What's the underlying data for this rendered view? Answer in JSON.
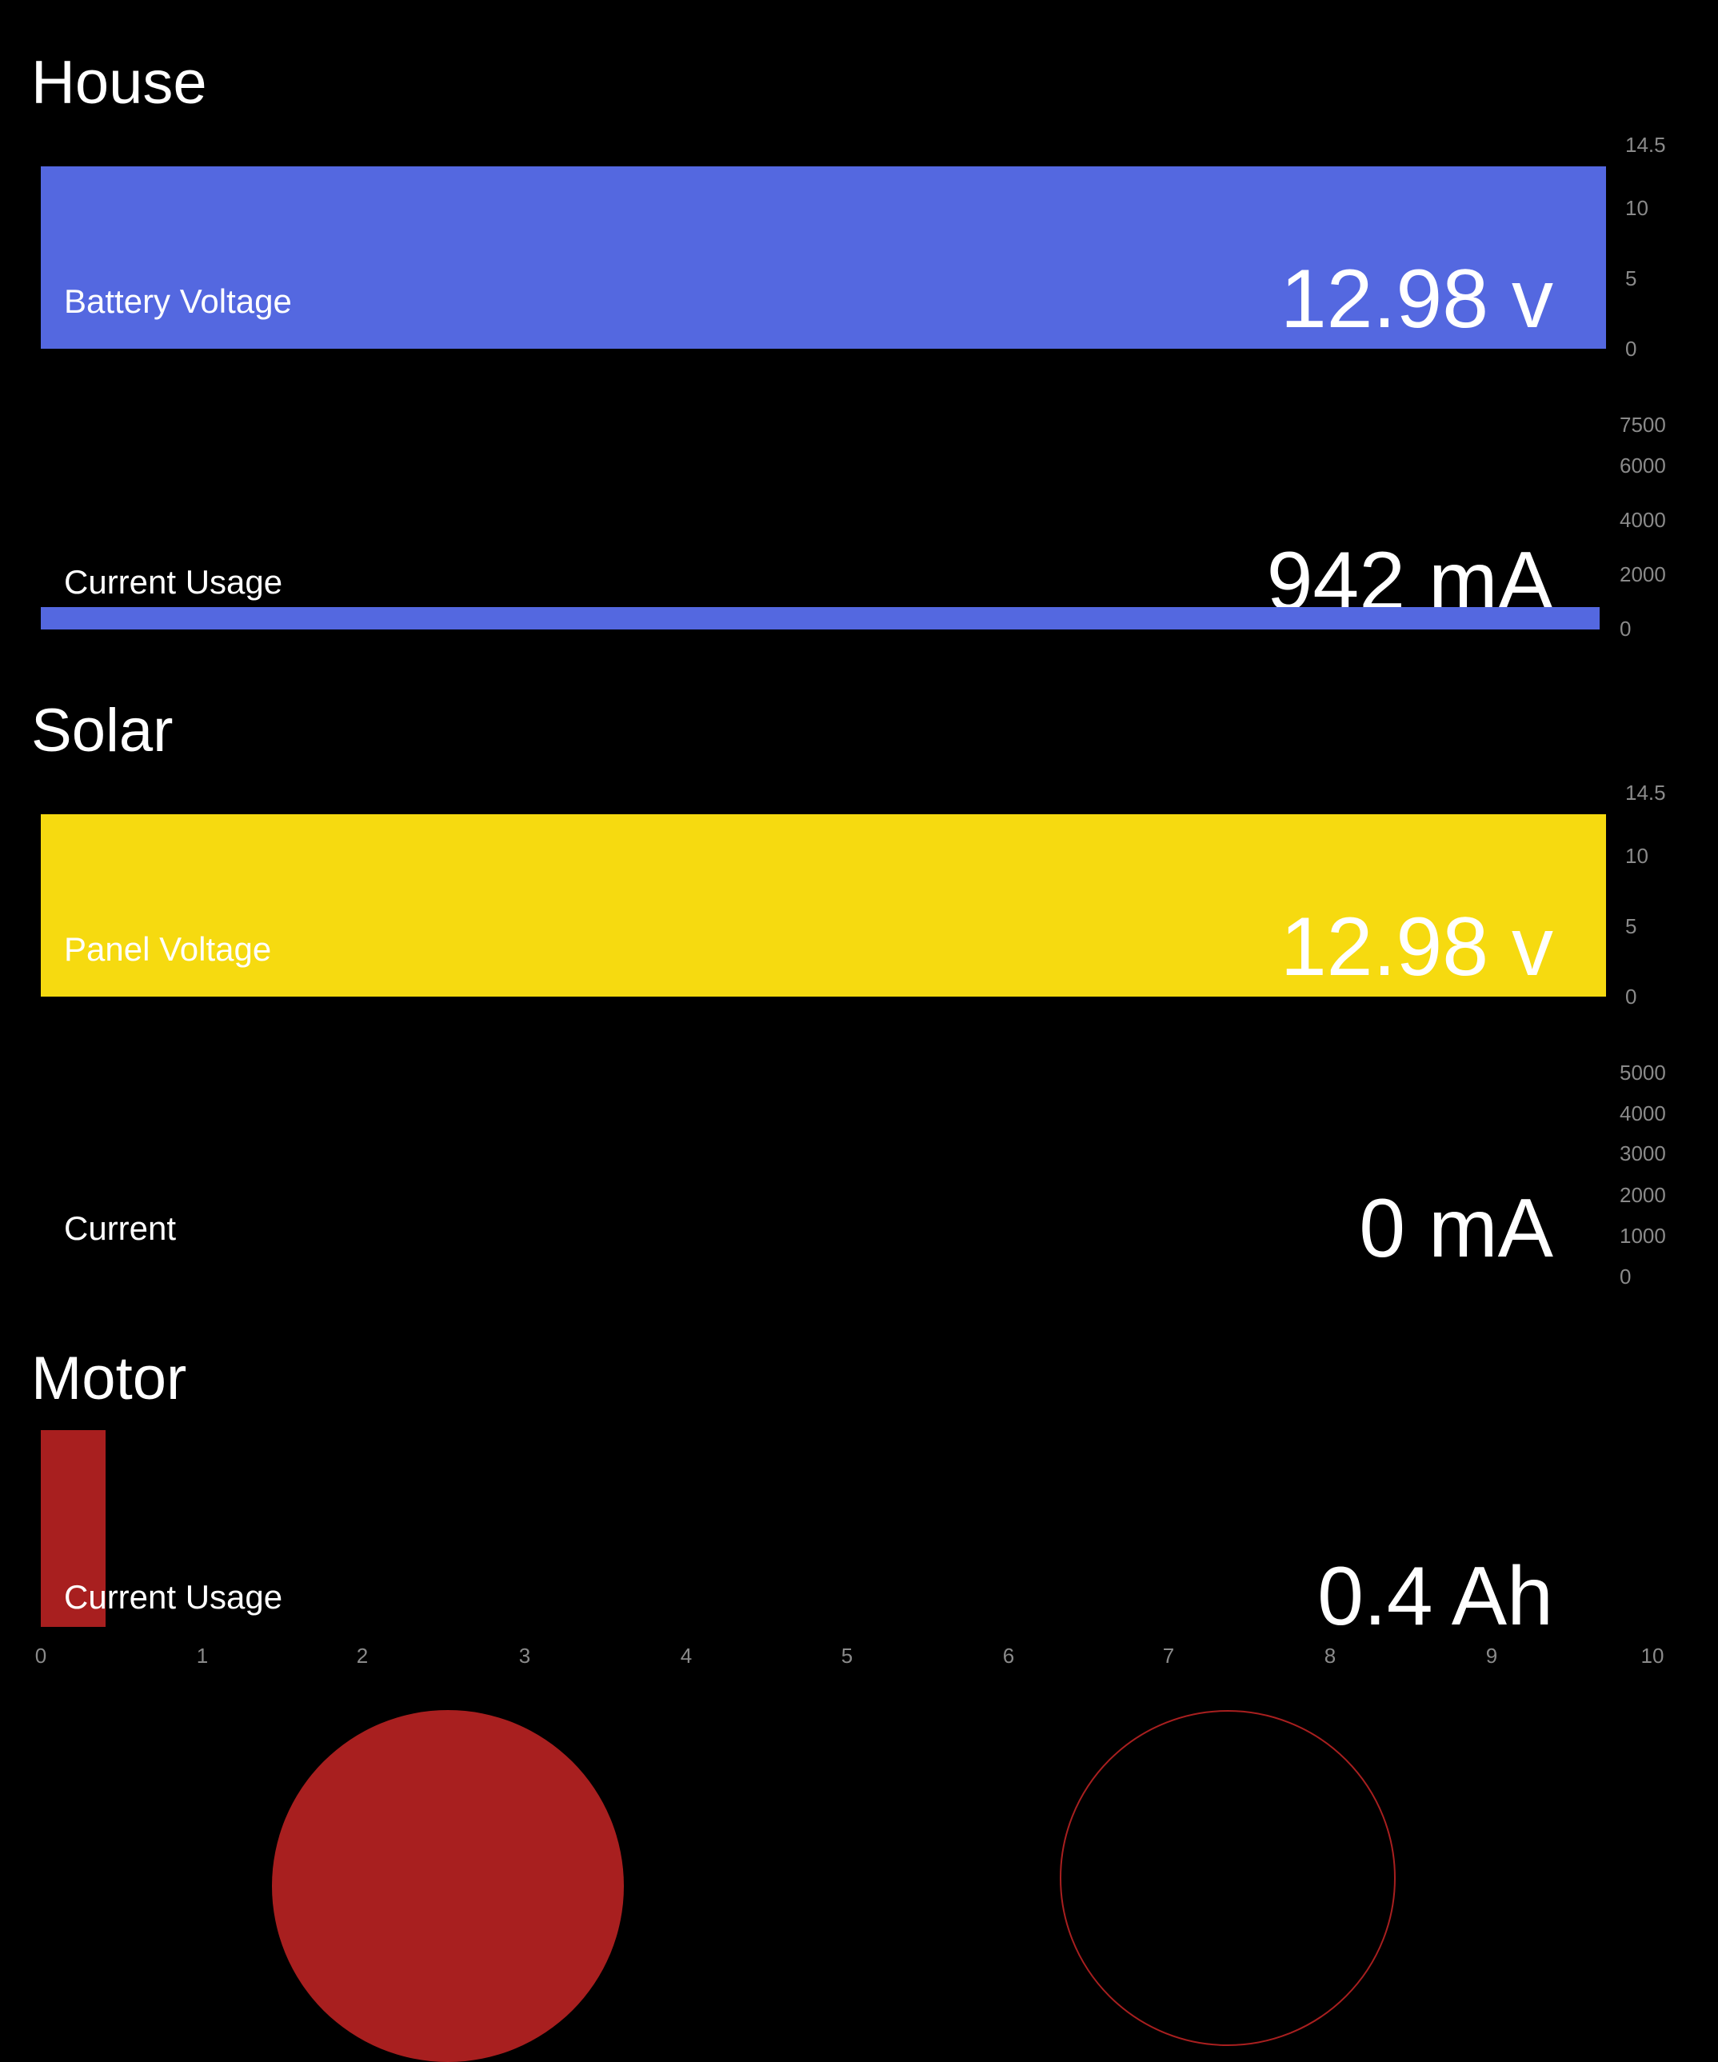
{
  "colors": {
    "house": "#5468e0",
    "solar": "#f6da10",
    "motor": "#a81f1f",
    "background": "#000000",
    "tick": "#8a8a8a"
  },
  "sections": {
    "house": {
      "title": "House",
      "battery_voltage": {
        "label": "Battery Voltage",
        "value_text": "12.98 v",
        "value": 12.98,
        "ticks": [
          "14.5",
          "10",
          "5",
          "0"
        ],
        "range": [
          0,
          14.5
        ]
      },
      "current_usage": {
        "label": "Current Usage",
        "value_text": "942 mA",
        "value": 942,
        "ticks": [
          "7500",
          "6000",
          "4000",
          "2000",
          "0"
        ],
        "range": [
          0,
          7500
        ]
      }
    },
    "solar": {
      "title": "Solar",
      "panel_voltage": {
        "label": "Panel Voltage",
        "value_text": "12.98 v",
        "value": 12.98,
        "ticks": [
          "14.5",
          "10",
          "5",
          "0"
        ],
        "range": [
          0,
          14.5
        ]
      },
      "current": {
        "label": "Current",
        "value_text": "0 mA",
        "value": 0,
        "ticks": [
          "5000",
          "4000",
          "3000",
          "2000",
          "1000",
          "0"
        ],
        "range": [
          0,
          5000
        ]
      }
    },
    "motor": {
      "title": "Motor",
      "current_usage": {
        "label": "Current Usage",
        "value_text": "0.4 Ah",
        "value": 0.4,
        "ticks": [
          "0",
          "1",
          "2",
          "3",
          "4",
          "5",
          "6",
          "7",
          "8",
          "9",
          "10"
        ],
        "range": [
          0,
          10
        ]
      }
    }
  }
}
